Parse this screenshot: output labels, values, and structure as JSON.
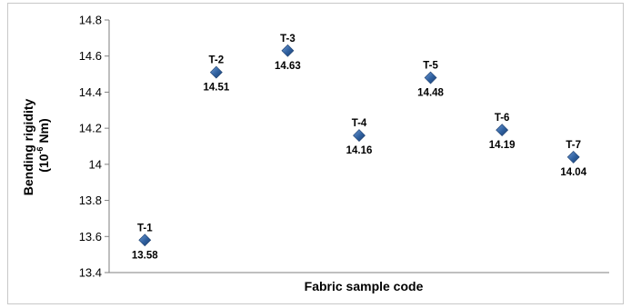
{
  "chart_data": {
    "type": "scatter",
    "xlabel": "Fabric sample code",
    "ylabel_line1": "Bending rigidity",
    "ylabel_line2_prefix": "(10",
    "ylabel_line2_exp": "-6",
    "ylabel_line2_suffix": " Nm)",
    "ylim": [
      13.4,
      14.8
    ],
    "yticks": [
      "13.4",
      "13.6",
      "13.8",
      "14",
      "14.2",
      "14.4",
      "14.6",
      "14.8"
    ],
    "grid": false,
    "marker": "diamond",
    "marker_color": "#2e5f9e",
    "points": [
      {
        "code": "T-1",
        "value": 13.58,
        "label": "13.58"
      },
      {
        "code": "T-2",
        "value": 14.51,
        "label": "14.51"
      },
      {
        "code": "T-3",
        "value": 14.63,
        "label": "14.63"
      },
      {
        "code": "T-4",
        "value": 14.16,
        "label": "14.16"
      },
      {
        "code": "T-5",
        "value": 14.48,
        "label": "14.48"
      },
      {
        "code": "T-6",
        "value": 14.19,
        "label": "14.19"
      },
      {
        "code": "T-7",
        "value": 14.04,
        "label": "14.04"
      }
    ]
  }
}
